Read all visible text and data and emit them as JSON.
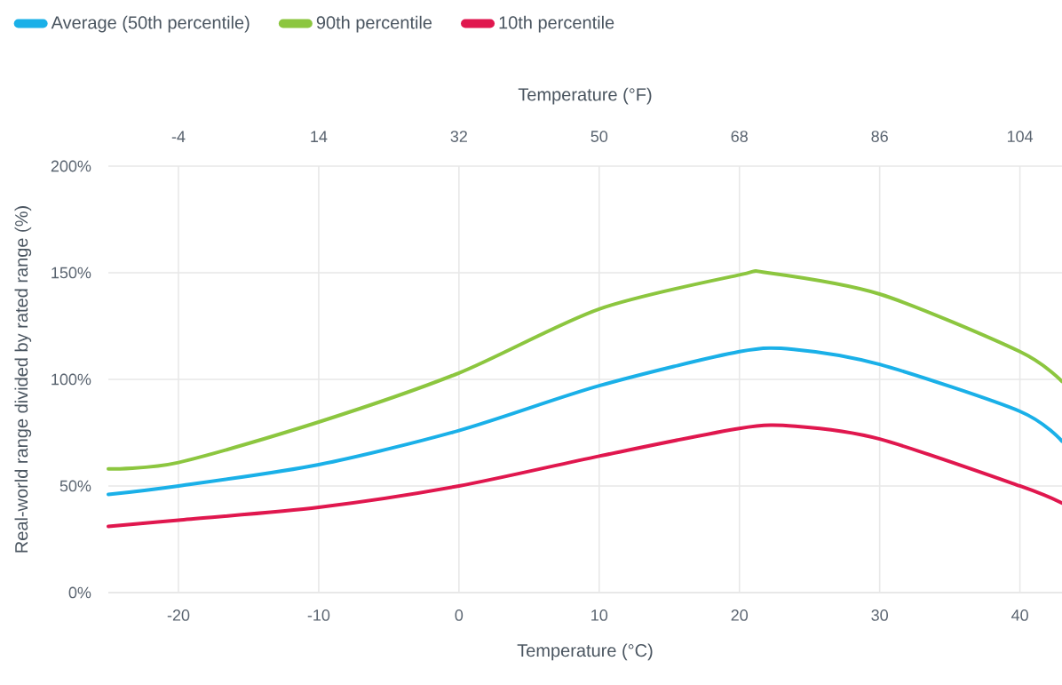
{
  "chart_data": {
    "type": "line",
    "xlabel": "Temperature (°C)",
    "x2label": "Temperature (°F)",
    "ylabel": "Real-world range divided by rated range (%)",
    "series": [
      {
        "name": "Average (50th percentile)",
        "color": "#1ab0e8",
        "x": [
          -25,
          -20,
          -10,
          0,
          10,
          20,
          24,
          30,
          40,
          43
        ],
        "values": [
          46,
          50,
          60,
          76,
          97,
          113,
          114,
          107,
          85,
          71
        ]
      },
      {
        "name": "90th percentile",
        "color": "#8cc63f",
        "x": [
          -25,
          -20,
          -10,
          0,
          10,
          20,
          22,
          30,
          40,
          43
        ],
        "values": [
          58,
          61,
          80,
          103,
          133,
          149,
          150,
          140,
          113,
          99
        ]
      },
      {
        "name": "10th percentile",
        "color": "#e0174e",
        "x": [
          -25,
          -20,
          -10,
          0,
          10,
          20,
          24,
          30,
          40,
          43
        ],
        "values": [
          31,
          34,
          40,
          50,
          64,
          77,
          78,
          72,
          50,
          42
        ]
      }
    ],
    "xlim": [
      -25,
      43
    ],
    "xticks": [
      -20,
      -10,
      0,
      10,
      20,
      30,
      40
    ],
    "x2lim": [
      -13,
      109.4
    ],
    "x2ticks": [
      -4,
      14,
      32,
      50,
      68,
      86,
      104
    ],
    "ylim": [
      0,
      200
    ],
    "yticks": [
      {
        "value": 0,
        "label": "0%"
      },
      {
        "value": 50,
        "label": "50%"
      },
      {
        "value": 100,
        "label": "100%"
      },
      {
        "value": 150,
        "label": "150%"
      },
      {
        "value": 200,
        "label": "200%"
      }
    ],
    "grid": true,
    "legend": "top",
    "marker": "none",
    "line_style": "solid"
  }
}
